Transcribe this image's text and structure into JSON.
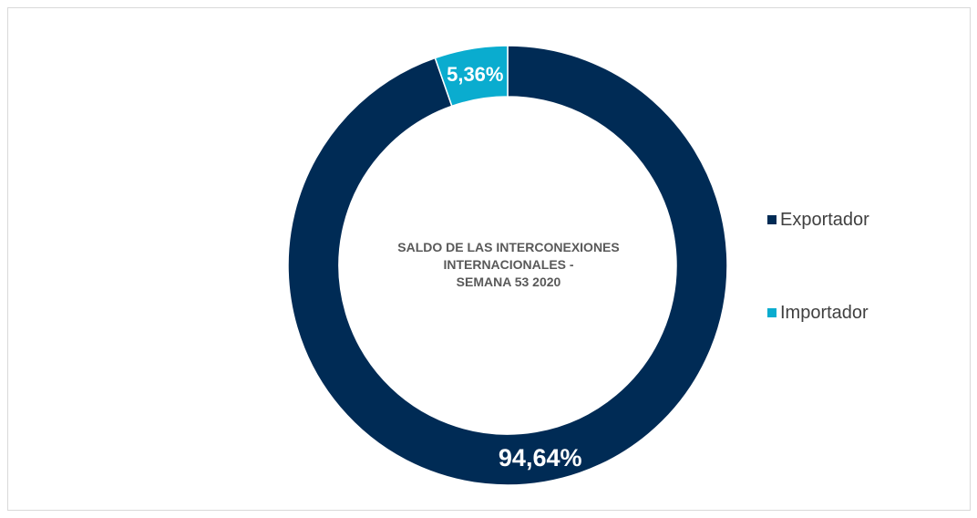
{
  "chart_data": {
    "type": "pie",
    "subtype": "donut",
    "title_lines": [
      "SALDO DE LAS INTERCONEXIONES",
      "INTERNACIONALES  -",
      "SEMANA 53 2020"
    ],
    "categories": [
      "Exportador",
      "Importador"
    ],
    "values": [
      94.64,
      5.36
    ],
    "data_labels": [
      "94,64%",
      "5,36%"
    ],
    "colors": [
      "#002B55",
      "#0AACCF"
    ],
    "legend_position": "right"
  }
}
